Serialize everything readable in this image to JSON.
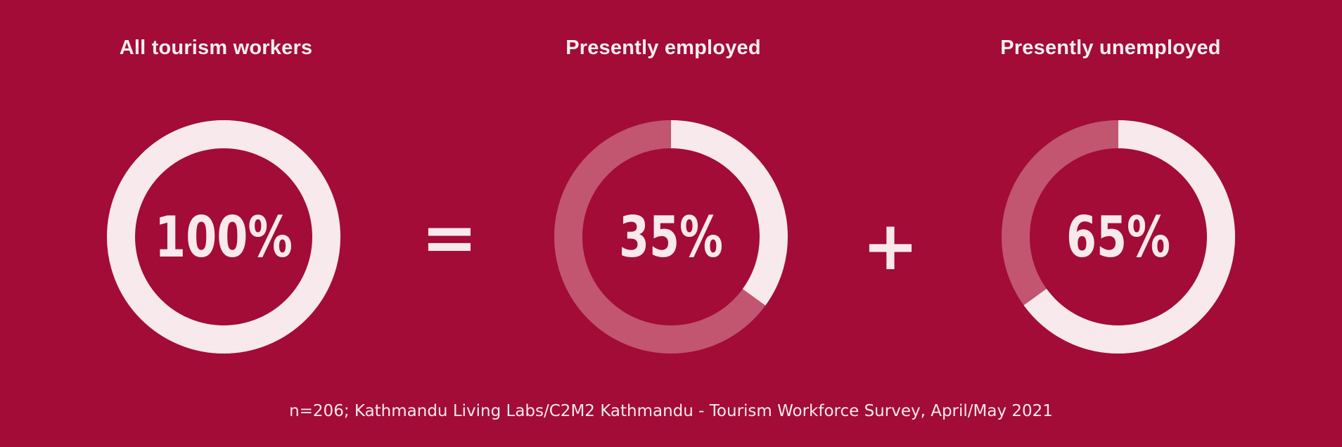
{
  "colors": {
    "background": "#a20c37",
    "ring_filled": "#f7e9ec",
    "ring_remainder": "#c25570",
    "text": "#f7e9ec"
  },
  "operators": {
    "equals": "=",
    "plus": "+"
  },
  "source_note": "n=206; Kathmandu Living Labs/C2M2 Kathmandu - Tourism Workforce Survey, April/May 2021",
  "chart_data": [
    {
      "type": "pie",
      "title": "All tourism workers",
      "value": 100,
      "label": "100%"
    },
    {
      "type": "pie",
      "title": "Presently employed",
      "value": 35,
      "label": "35%"
    },
    {
      "type": "pie",
      "title": "Presently unemployed",
      "value": 65,
      "label": "65%"
    }
  ]
}
